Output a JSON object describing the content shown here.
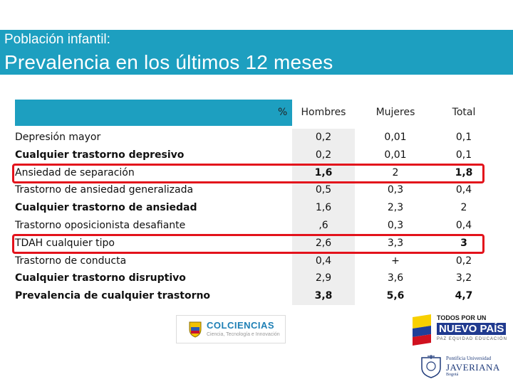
{
  "header": {
    "subtitle": "Población infantil:",
    "title": "Prevalencia en los últimos 12 meses"
  },
  "table": {
    "percent_symbol": "%",
    "columns": [
      "Hombres",
      "Mujeres",
      "Total"
    ],
    "rows": [
      {
        "label": "Depresión mayor",
        "hombres": "0,2",
        "mujeres": "0,01",
        "total": "0,1"
      },
      {
        "label": "Cualquier trastorno depresivo",
        "hombres": "0,2",
        "mujeres": "0,01",
        "total": "0,1"
      },
      {
        "label": "Ansiedad de separación",
        "hombres": "1,6",
        "mujeres": "2",
        "total": "1,8"
      },
      {
        "label": "Trastorno de ansiedad generalizada",
        "hombres": "0,5",
        "mujeres": "0,3",
        "total": "0,4"
      },
      {
        "label": "Cualquier trastorno de ansiedad",
        "hombres": "1,6",
        "mujeres": "2,3",
        "total": "2"
      },
      {
        "label": "Trastorno oposicionista desafiante",
        "hombres": ",6",
        "mujeres": "0,3",
        "total": "0,4"
      },
      {
        "label": "TDAH  cualquier tipo",
        "hombres": "2,6",
        "mujeres": "3,3",
        "total": "3"
      },
      {
        "label": "Trastorno de conducta",
        "hombres": "0,4",
        "mujeres": "+",
        "total": "0,2"
      },
      {
        "label": "Cualquier trastorno disruptivo",
        "hombres": "2,9",
        "mujeres": "3,6",
        "total": "3,2"
      },
      {
        "label": "Prevalencia de cualquier trastorno",
        "hombres": "3,8",
        "mujeres": "5,6",
        "total": "4,7"
      }
    ],
    "highlight_color": "#e3121b"
  },
  "logos": {
    "colciencias": {
      "name": "COLCIENCIAS",
      "tagline": "Ciencia, Tecnología e Innovación"
    },
    "gobierno": {
      "line1": "TODOS POR UN",
      "line2": "NUEVO PAÍS",
      "line3": "PAZ EQUIDAD EDUCACIÓN"
    },
    "javeriana": {
      "line1": "Pontificia Universidad",
      "line2": "JAVERIANA",
      "line3": "Bogotá"
    }
  },
  "colors": {
    "header_bg": "#1d9fc0",
    "header_text": "#ffffff"
  }
}
